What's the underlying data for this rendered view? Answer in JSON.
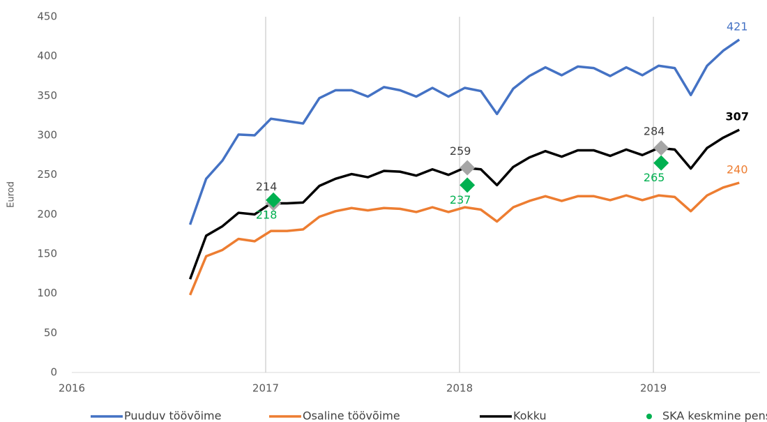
{
  "chart_data": {
    "type": "line",
    "y_label": "Eurod",
    "xlim": [
      2016,
      2019.55
    ],
    "xticks": [
      2016,
      2017,
      2018,
      2019
    ],
    "ylim": [
      0,
      450
    ],
    "yticks": [
      0,
      50,
      100,
      150,
      200,
      250,
      300,
      350,
      400,
      450
    ],
    "x_grid": true,
    "legend": "bottom",
    "x": [
      2016.61,
      2016.693,
      2016.777,
      2016.86,
      2016.943,
      2017.027,
      2017.11,
      2017.193,
      2017.277,
      2017.36,
      2017.443,
      2017.527,
      2017.61,
      2017.693,
      2017.777,
      2017.86,
      2017.943,
      2018.027,
      2018.11,
      2018.193,
      2018.277,
      2018.36,
      2018.443,
      2018.527,
      2018.61,
      2018.693,
      2018.777,
      2018.86,
      2018.943,
      2019.027,
      2019.11,
      2019.193,
      2019.277,
      2019.36,
      2019.443
    ],
    "series": [
      {
        "name": "Puuduv töövõime",
        "color": "#4472c4",
        "values": [
          187,
          245,
          268,
          301,
          300,
          321,
          318,
          315,
          347,
          357,
          357,
          349,
          361,
          357,
          349,
          360,
          349,
          360,
          356,
          327,
          359,
          375,
          386,
          376,
          387,
          385,
          375,
          386,
          376,
          388,
          385,
          351,
          388,
          407,
          421
        ]
      },
      {
        "name": "Osaline töövõime",
        "color": "#ed7d31",
        "values": [
          98,
          147,
          155,
          169,
          166,
          179,
          179,
          181,
          197,
          204,
          208,
          205,
          208,
          207,
          203,
          209,
          203,
          209,
          206,
          191,
          209,
          217,
          223,
          217,
          223,
          223,
          218,
          224,
          218,
          224,
          222,
          204,
          224,
          234,
          240
        ]
      },
      {
        "name": "Kokku",
        "color": "#000000",
        "values": [
          118,
          173,
          185,
          202,
          200,
          214,
          214,
          215,
          236,
          245,
          251,
          247,
          255,
          254,
          249,
          257,
          250,
          259,
          257,
          237,
          260,
          272,
          280,
          273,
          281,
          281,
          274,
          282,
          275,
          284,
          282,
          258,
          284,
          297,
          307
        ]
      },
      {
        "type": "scatter",
        "color": "#a5a5a5",
        "x": [
          2017.04,
          2018.04,
          2019.04
        ],
        "values": [
          214,
          259,
          284
        ]
      },
      {
        "type": "scatter",
        "name": "SKA keskmine pension",
        "color": "#00b050",
        "x": [
          2017.04,
          2018.04,
          2019.04
        ],
        "values": [
          218,
          237,
          265
        ]
      }
    ]
  }
}
